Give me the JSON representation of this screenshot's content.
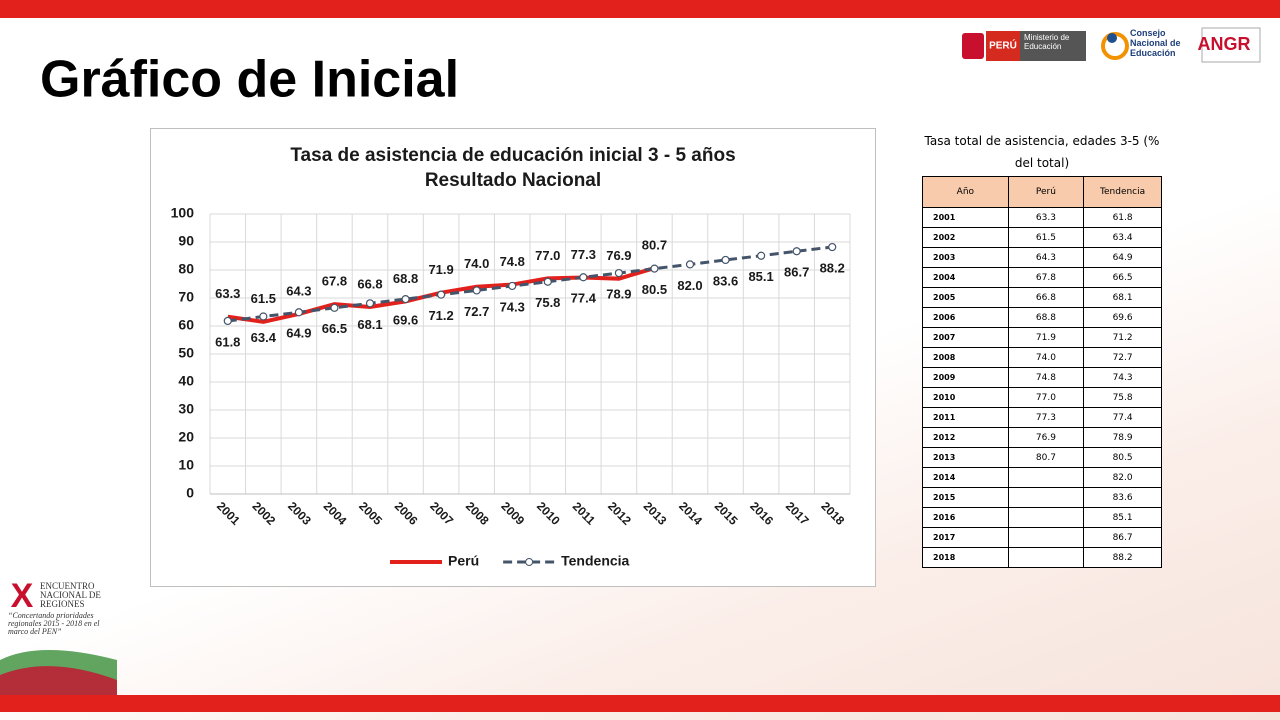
{
  "slide_title": "Gráfico de Inicial",
  "logos": {
    "peru": "PERÚ",
    "ministry": "Ministerio de Educación",
    "council": "Consejo Nacional de Educación",
    "angr": "ANGR"
  },
  "event": {
    "mark": "X",
    "name": "ENCUENTRO NACIONAL DE REGIONES",
    "motto": "“Concertando prioridades regionales 2015 - 2018 en el marco del PEN”"
  },
  "chart_data": {
    "type": "line",
    "title": [
      "Tasa de asistencia de educación inicial 3 - 5 años",
      "Resultado Nacional"
    ],
    "categories": [
      "2001",
      "2002",
      "2003",
      "2004",
      "2005",
      "2006",
      "2007",
      "2008",
      "2009",
      "2010",
      "2011",
      "2012",
      "2013",
      "2014",
      "2015",
      "2016",
      "2017",
      "2018"
    ],
    "series": [
      {
        "name": "Perú",
        "color": "#e3211c",
        "dashed": false,
        "values": [
          63.3,
          61.5,
          64.3,
          67.8,
          66.8,
          68.8,
          71.9,
          74.0,
          74.8,
          77.0,
          77.3,
          76.9,
          80.7,
          null,
          null,
          null,
          null,
          null
        ],
        "value_labels": [
          "63.3",
          "61.5",
          "64.3",
          "67.8",
          "66.8",
          "68.8",
          "71.9",
          "74.0",
          "74.8",
          "77.0",
          "77.3",
          "76.9",
          "80.7",
          null,
          null,
          null,
          null,
          null
        ],
        "label_side": "above"
      },
      {
        "name": "Tendencia",
        "color": "#44546a",
        "dashed": true,
        "values": [
          61.8,
          63.4,
          64.9,
          66.5,
          68.1,
          69.6,
          71.2,
          72.7,
          74.3,
          75.8,
          77.4,
          78.9,
          80.5,
          82.0,
          83.6,
          85.1,
          86.7,
          88.2
        ],
        "value_labels": [
          "61.8",
          "63.4",
          "64.9",
          "66.5",
          "68.1",
          "69.6",
          "71.2",
          "72.7",
          "74.3",
          "75.8",
          "77.4",
          "78.9",
          "80.5",
          "82.0",
          "83.6",
          "85.1",
          "86.7",
          "88.2"
        ],
        "label_side": "below"
      }
    ],
    "ylim": [
      0,
      100
    ],
    "yticks": [
      0,
      10,
      20,
      30,
      40,
      50,
      60,
      70,
      80,
      90,
      100
    ],
    "grid": true,
    "legend": "bottom"
  },
  "table": {
    "title": "Tasa total de asistencia, edades 3-5 (% del total)",
    "header": [
      "Año",
      "Perú",
      "Tendencia"
    ],
    "rows": [
      [
        "2001",
        "63.3",
        "61.8"
      ],
      [
        "2002",
        "61.5",
        "63.4"
      ],
      [
        "2003",
        "64.3",
        "64.9"
      ],
      [
        "2004",
        "67.8",
        "66.5"
      ],
      [
        "2005",
        "66.8",
        "68.1"
      ],
      [
        "2006",
        "68.8",
        "69.6"
      ],
      [
        "2007",
        "71.9",
        "71.2"
      ],
      [
        "2008",
        "74.0",
        "72.7"
      ],
      [
        "2009",
        "74.8",
        "74.3"
      ],
      [
        "2010",
        "77.0",
        "75.8"
      ],
      [
        "2011",
        "77.3",
        "77.4"
      ],
      [
        "2012",
        "76.9",
        "78.9"
      ],
      [
        "2013",
        "80.7",
        "80.5"
      ],
      [
        "2014",
        null,
        "82.0"
      ],
      [
        "2015",
        null,
        "83.6"
      ],
      [
        "2016",
        null,
        "85.1"
      ],
      [
        "2017",
        null,
        "86.7"
      ],
      [
        "2018",
        null,
        "88.2"
      ]
    ]
  }
}
